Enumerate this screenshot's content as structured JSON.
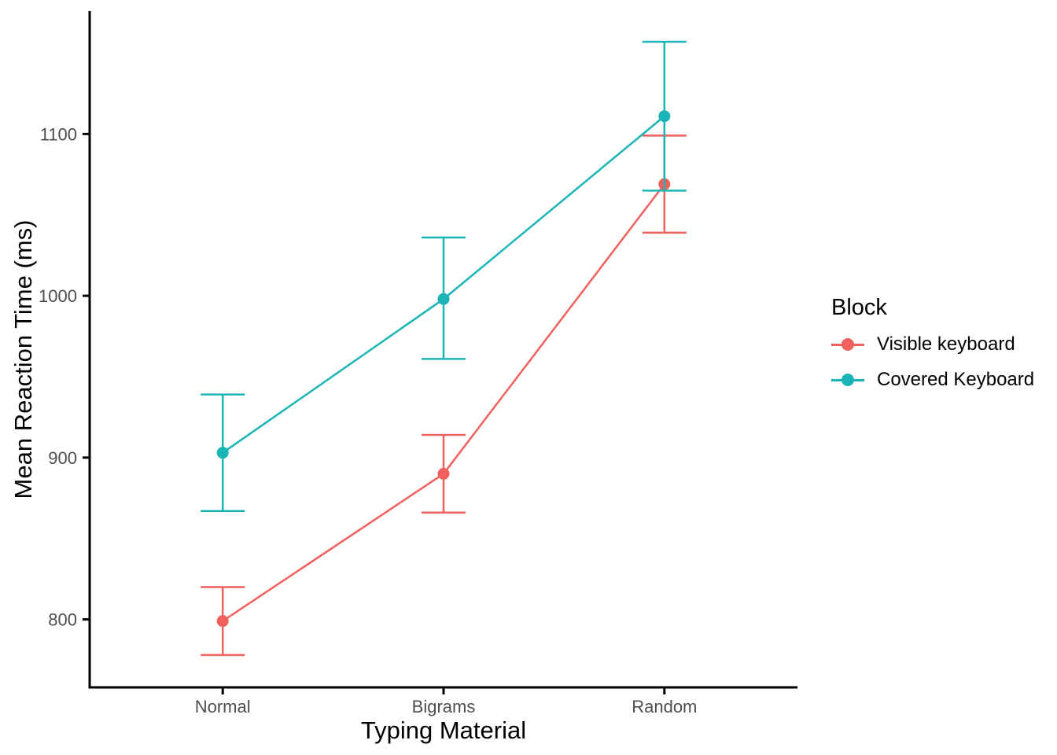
{
  "chart_data": {
    "type": "line",
    "title": "",
    "xlabel": "Typing Material",
    "ylabel": "Mean Reaction Time (ms)",
    "categories": [
      "Normal",
      "Bigrams",
      "Random"
    ],
    "series": [
      {
        "name": "Visible keyboard",
        "color": "#F0615D",
        "values": [
          799,
          890,
          1069
        ],
        "error_lower": [
          778,
          866,
          1039
        ],
        "error_upper": [
          820,
          914,
          1099
        ]
      },
      {
        "name": "Covered Keyboard",
        "color": "#1AB4B6",
        "values": [
          903,
          998,
          1111
        ],
        "error_lower": [
          867,
          961,
          1065
        ],
        "error_upper": [
          939,
          1036,
          1157
        ]
      }
    ],
    "yticks": [
      800,
      900,
      1000,
      1100
    ],
    "ylim": [
      758,
      1176
    ],
    "grid": false,
    "legend_position": "right",
    "background_color": "#FFFFFF",
    "axis_color": "#000000",
    "tick_label_color": "#4D4D4D"
  },
  "legend": {
    "title": "Block"
  }
}
